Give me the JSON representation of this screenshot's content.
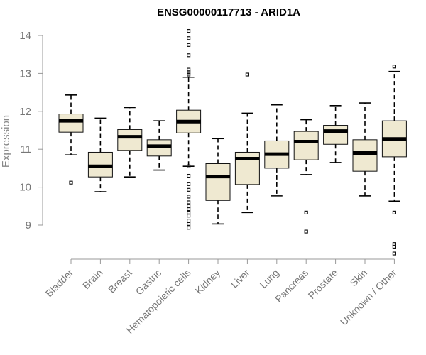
{
  "chart_data": {
    "type": "box",
    "title": "ENSG00000117713 - ARID1A",
    "xlabel": "",
    "ylabel": "Expression",
    "ylim": [
      8.1,
      14.2
    ],
    "yticks": [
      9,
      10,
      11,
      12,
      13,
      14
    ],
    "grid": false,
    "colors": {
      "box_fill": "#efe9d1",
      "box_stroke": "#111111",
      "axis": "#999999",
      "text": "#777777"
    },
    "categories": [
      "Bladder",
      "Brain",
      "Breast",
      "Gastric",
      "Hematopoietic cells",
      "Kidney",
      "Liver",
      "Lung",
      "Pancreas",
      "Prostate",
      "Skin",
      "Unknown / Other"
    ],
    "boxes": [
      {
        "category": "Bladder",
        "whisker_low": 10.85,
        "q1": 11.45,
        "median": 11.75,
        "q3": 11.93,
        "whisker_high": 12.43,
        "outliers": [
          10.12
        ]
      },
      {
        "category": "Brain",
        "whisker_low": 9.88,
        "q1": 10.27,
        "median": 10.55,
        "q3": 10.92,
        "whisker_high": 11.82,
        "outliers": []
      },
      {
        "category": "Breast",
        "whisker_low": 10.27,
        "q1": 10.97,
        "median": 11.33,
        "q3": 11.52,
        "whisker_high": 12.1,
        "outliers": []
      },
      {
        "category": "Gastric",
        "whisker_low": 10.45,
        "q1": 10.82,
        "median": 11.08,
        "q3": 11.25,
        "whisker_high": 11.75,
        "outliers": []
      },
      {
        "category": "Hematopoietic cells",
        "whisker_low": 10.55,
        "q1": 11.43,
        "median": 11.73,
        "q3": 12.03,
        "whisker_high": 12.9,
        "outliers": [
          14.12,
          13.93,
          13.75,
          13.48,
          13.1,
          13.03,
          12.97,
          10.55,
          10.3,
          10.08,
          9.93,
          9.75,
          9.6,
          9.5,
          9.42,
          9.33,
          9.25,
          9.12,
          9.03,
          8.93
        ]
      },
      {
        "category": "Kidney",
        "whisker_low": 9.03,
        "q1": 9.65,
        "median": 10.28,
        "q3": 10.62,
        "whisker_high": 11.28,
        "outliers": []
      },
      {
        "category": "Liver",
        "whisker_low": 9.33,
        "q1": 10.07,
        "median": 10.75,
        "q3": 10.92,
        "whisker_high": 11.95,
        "outliers": [
          12.97
        ]
      },
      {
        "category": "Lung",
        "whisker_low": 9.77,
        "q1": 10.5,
        "median": 10.87,
        "q3": 11.22,
        "whisker_high": 12.17,
        "outliers": []
      },
      {
        "category": "Pancreas",
        "whisker_low": 10.33,
        "q1": 10.72,
        "median": 11.2,
        "q3": 11.47,
        "whisker_high": 11.78,
        "outliers": [
          9.33,
          8.83
        ]
      },
      {
        "category": "Prostate",
        "whisker_low": 10.65,
        "q1": 11.13,
        "median": 11.48,
        "q3": 11.63,
        "whisker_high": 12.15,
        "outliers": []
      },
      {
        "category": "Skin",
        "whisker_low": 9.77,
        "q1": 10.42,
        "median": 10.9,
        "q3": 11.25,
        "whisker_high": 12.22,
        "outliers": []
      },
      {
        "category": "Unknown / Other",
        "whisker_low": 9.63,
        "q1": 10.8,
        "median": 11.27,
        "q3": 11.75,
        "whisker_high": 13.05,
        "outliers": [
          13.18,
          9.33,
          8.5,
          8.43,
          8.25
        ]
      }
    ]
  }
}
